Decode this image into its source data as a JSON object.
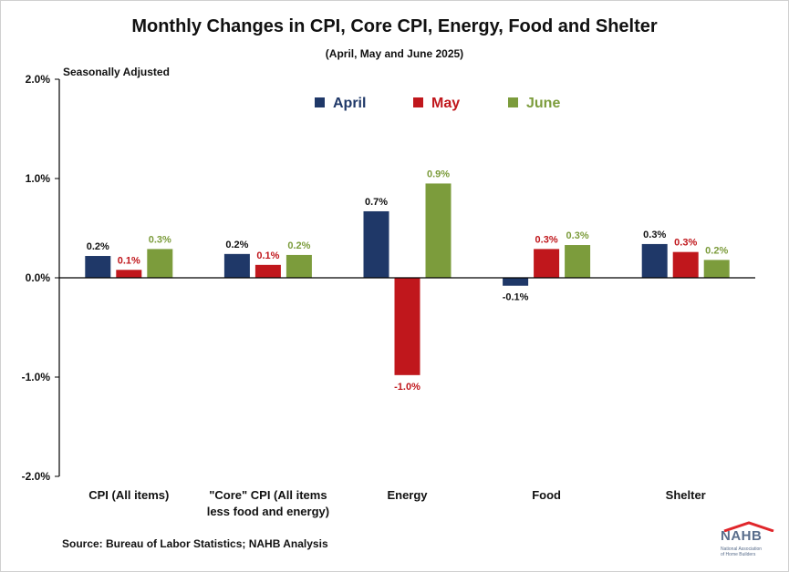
{
  "title": "Monthly Changes in CPI, Core CPI, Energy, Food and Shelter",
  "subtitle": "(April, May and June 2025)",
  "note": "Seasonally Adjusted",
  "source": "Source: Bureau of Labor Statistics; NAHB Analysis",
  "logo": {
    "name": "NAHB",
    "tagline_line1": "National Association",
    "tagline_line2": "of Home Builders"
  },
  "colors": {
    "April": "#1f3868",
    "May": "#c0171c",
    "June": "#7c9c3c",
    "axis": "#000000"
  },
  "chart_data": {
    "type": "bar",
    "categories": [
      [
        "CPI (All items)"
      ],
      [
        "\"Core\" CPI (All items",
        "less food and energy)"
      ],
      [
        "Energy"
      ],
      [
        "Food"
      ],
      [
        "Shelter"
      ]
    ],
    "series": [
      {
        "name": "April",
        "values": [
          0.22,
          0.24,
          0.67,
          -0.08,
          0.34
        ],
        "labels": [
          "0.2%",
          "0.2%",
          "0.7%",
          "-0.1%",
          "0.3%"
        ]
      },
      {
        "name": "May",
        "values": [
          0.08,
          0.13,
          -0.98,
          0.29,
          0.26
        ],
        "labels": [
          "0.1%",
          "0.1%",
          "-1.0%",
          "0.3%",
          "0.3%"
        ]
      },
      {
        "name": "June",
        "values": [
          0.29,
          0.23,
          0.95,
          0.33,
          0.18
        ],
        "labels": [
          "0.3%",
          "0.2%",
          "0.9%",
          "0.3%",
          "0.2%"
        ]
      }
    ],
    "ylim": [
      -2.0,
      2.0
    ],
    "yticks": [
      {
        "value": 2.0,
        "label": "2.0%"
      },
      {
        "value": 1.0,
        "label": "1.0%"
      },
      {
        "value": 0.0,
        "label": "0.0%"
      },
      {
        "value": -1.0,
        "label": "-1.0%"
      },
      {
        "value": -2.0,
        "label": "-2.0%"
      }
    ],
    "xlabel": "",
    "ylabel": "",
    "grid": false,
    "legend_position": "top-center"
  }
}
